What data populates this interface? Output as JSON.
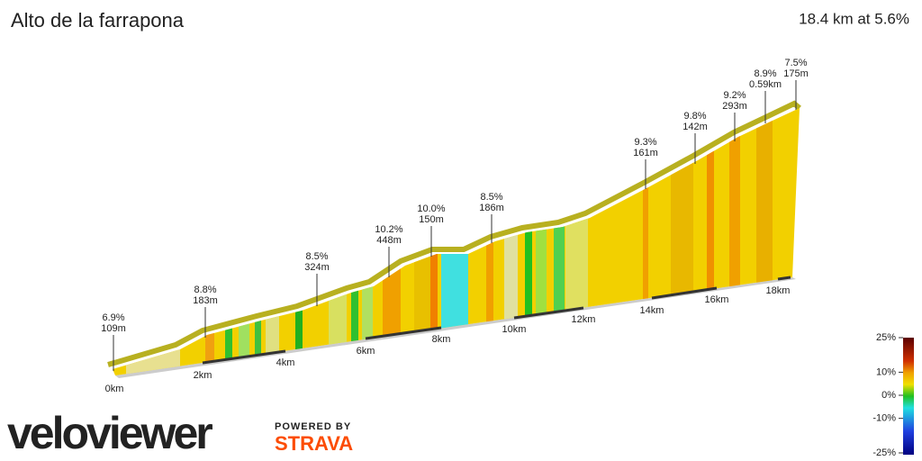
{
  "chart_data": {
    "type": "profile",
    "title": "Alto de la farrapona",
    "subtitle": "18.4 km at 5.6%",
    "xticks": [
      {
        "value": 0,
        "label": "0km"
      },
      {
        "value": 2,
        "label": "2km"
      },
      {
        "value": 4,
        "label": "4km"
      },
      {
        "value": 6,
        "label": "6km"
      },
      {
        "value": 8,
        "label": "8km"
      },
      {
        "value": 10,
        "label": "10km"
      },
      {
        "value": 12,
        "label": "12km"
      },
      {
        "value": 14,
        "label": "14km"
      },
      {
        "value": 16,
        "label": "16km"
      },
      {
        "value": 18,
        "label": "18km"
      }
    ],
    "annotations": [
      {
        "gradient": "6.9%",
        "length": "109m"
      },
      {
        "gradient": "8.8%",
        "length": "183m"
      },
      {
        "gradient": "8.5%",
        "length": "324m"
      },
      {
        "gradient": "10.2%",
        "length": "448m"
      },
      {
        "gradient": "10.0%",
        "length": "150m"
      },
      {
        "gradient": "8.5%",
        "length": "186m"
      },
      {
        "gradient": "9.3%",
        "length": "161m"
      },
      {
        "gradient": "9.8%",
        "length": "142m"
      },
      {
        "gradient": "9.2%",
        "length": "293m"
      },
      {
        "gradient": "8.9%",
        "length": "0.59km"
      },
      {
        "gradient": "7.5%",
        "length": "175m"
      }
    ],
    "colorbar": {
      "ticks": [
        {
          "value": 25,
          "label": "25%"
        },
        {
          "value": 10,
          "label": "10%"
        },
        {
          "value": 0,
          "label": "0%"
        },
        {
          "value": -10,
          "label": "-10%"
        },
        {
          "value": -25,
          "label": "-25%"
        }
      ],
      "lim": [
        -25,
        25
      ]
    }
  },
  "branding": {
    "logo": "veloviewer",
    "powered_by": "POWERED BY",
    "partner": "STRAVA"
  }
}
